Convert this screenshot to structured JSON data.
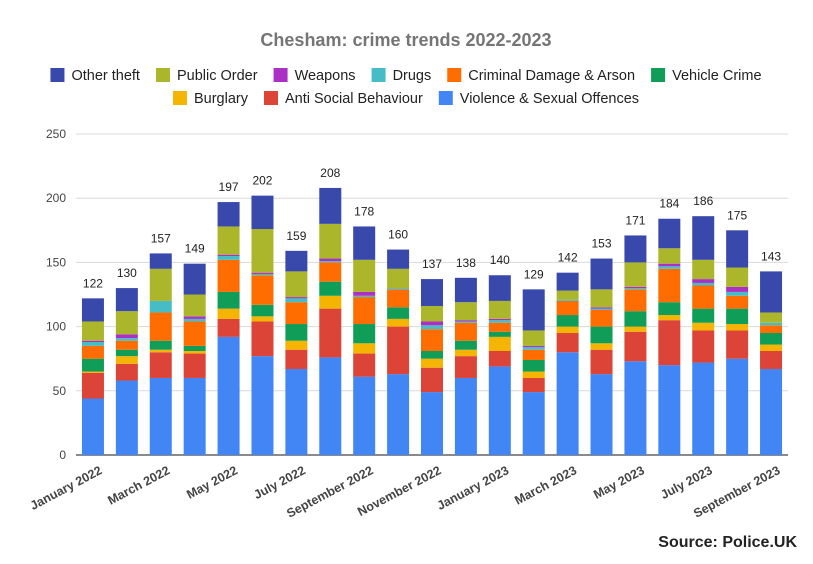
{
  "source_label": "Source: Police.UK",
  "chart_data": {
    "type": "bar",
    "stacked": true,
    "title": "Chesham: crime trends 2022-2023",
    "xlabel": "",
    "ylabel": "",
    "ylim": [
      0,
      250
    ],
    "yticks": [
      0,
      50,
      100,
      150,
      200,
      250
    ],
    "grid": true,
    "legend_position": "top",
    "categories": [
      "January 2022",
      "February 2022",
      "March 2022",
      "April 2022",
      "May 2022",
      "June 2022",
      "July 2022",
      "August 2022",
      "September 2022",
      "October 2022",
      "November 2022",
      "December 2022",
      "January 2023",
      "February 2023",
      "March 2023",
      "April 2023",
      "May 2023",
      "June 2023",
      "July 2023",
      "August 2023",
      "September 2023"
    ],
    "visible_x_labels": [
      "January 2022",
      "March 2022",
      "May 2022",
      "July 2022",
      "September 2022",
      "November 2022",
      "January 2023",
      "March 2023",
      "May 2023",
      "July 2023",
      "September 2023"
    ],
    "totals": [
      122,
      130,
      157,
      149,
      197,
      202,
      159,
      208,
      178,
      160,
      137,
      138,
      140,
      129,
      142,
      153,
      171,
      184,
      186,
      175,
      143
    ],
    "legend_order": [
      "Other theft",
      "Public Order",
      "Weapons",
      "Drugs",
      "Criminal Damage & Arson",
      "Vehicle Crime",
      "Burglary",
      "Anti Social Behaviour",
      "Violence & Sexual Offences"
    ],
    "series": [
      {
        "name": "Violence & Sexual Offences",
        "color": "#4285f4",
        "values": [
          44,
          58,
          60,
          60,
          92,
          77,
          67,
          76,
          61,
          63,
          49,
          60,
          69,
          49,
          80,
          63,
          73,
          70,
          72,
          75,
          67
        ]
      },
      {
        "name": "Anti Social Behaviour",
        "color": "#db4437",
        "values": [
          20,
          13,
          20,
          19,
          14,
          27,
          15,
          38,
          18,
          37,
          19,
          17,
          12,
          11,
          15,
          19,
          23,
          35,
          25,
          22,
          14
        ]
      },
      {
        "name": "Burglary",
        "color": "#f4b400",
        "values": [
          1,
          6,
          2,
          2,
          8,
          4,
          7,
          10,
          8,
          6,
          7,
          5,
          11,
          5,
          5,
          5,
          4,
          4,
          6,
          5,
          5
        ]
      },
      {
        "name": "Vehicle Crime",
        "color": "#0f9d58",
        "values": [
          10,
          5,
          7,
          4,
          13,
          9,
          13,
          11,
          15,
          9,
          6,
          7,
          4,
          9,
          9,
          13,
          12,
          10,
          11,
          12,
          9
        ]
      },
      {
        "name": "Criminal Damage & Arson",
        "color": "#ff6d01",
        "values": [
          10,
          7,
          22,
          19,
          25,
          23,
          17,
          15,
          21,
          14,
          17,
          14,
          7,
          8,
          11,
          13,
          17,
          26,
          18,
          10,
          6
        ]
      },
      {
        "name": "Drugs",
        "color": "#46bdc6",
        "values": [
          3,
          2,
          9,
          2,
          3,
          1,
          3,
          1,
          1,
          1,
          3,
          1,
          2,
          2,
          1,
          1,
          1,
          2,
          2,
          3,
          2
        ]
      },
      {
        "name": "Weapons",
        "color": "#ab30c4",
        "values": [
          1,
          3,
          0,
          2,
          1,
          1,
          1,
          2,
          3,
          0,
          3,
          1,
          1,
          1,
          0,
          1,
          1,
          2,
          3,
          4,
          0
        ]
      },
      {
        "name": "Public Order",
        "color": "#abb62a",
        "values": [
          15,
          18,
          25,
          17,
          22,
          34,
          20,
          27,
          25,
          15,
          12,
          14,
          14,
          12,
          7,
          14,
          19,
          12,
          15,
          15,
          8
        ]
      },
      {
        "name": "Other theft",
        "color": "#3949ab",
        "values": [
          18,
          18,
          12,
          24,
          19,
          26,
          16,
          28,
          26,
          15,
          21,
          19,
          20,
          32,
          14,
          24,
          21,
          23,
          34,
          29,
          32
        ]
      }
    ]
  }
}
